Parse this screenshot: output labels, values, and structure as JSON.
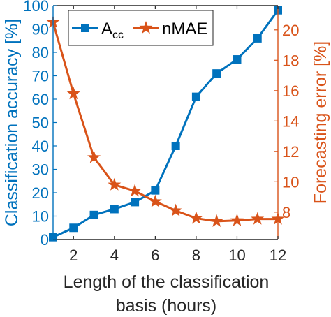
{
  "chart_data": {
    "type": "line",
    "x": [
      1,
      2,
      3,
      4,
      5,
      6,
      7,
      8,
      9,
      10,
      11,
      12
    ],
    "xlabel": [
      "Length of the classification",
      "basis (hours)"
    ],
    "xlim": [
      1,
      12
    ],
    "xticks": [
      2,
      4,
      6,
      8,
      10,
      12
    ],
    "grid": false,
    "legend_position": "top-left",
    "axes": {
      "left": {
        "label": "Classification accuracy [%]",
        "lim": [
          0,
          100
        ],
        "ticks": [
          0,
          10,
          20,
          30,
          40,
          50,
          60,
          70,
          80,
          90,
          100
        ],
        "color": "#0072BD"
      },
      "right": {
        "label": "Forecasting error [%]",
        "lim": [
          6.2,
          21.6
        ],
        "ticks": [
          8,
          10,
          12,
          14,
          16,
          18,
          20
        ],
        "color": "#D95319"
      }
    },
    "series": [
      {
        "legend_main": "A",
        "legend_sub": "cc",
        "axis": "left",
        "marker": "square",
        "color": "#0072BD",
        "values": [
          1,
          5,
          10.5,
          13,
          16,
          21,
          40,
          61,
          71,
          77,
          86,
          98
        ]
      },
      {
        "name": "nMAE",
        "axis": "right",
        "marker": "star",
        "color": "#D95319",
        "values": [
          20.5,
          15.8,
          11.6,
          9.8,
          9.4,
          8.7,
          8.1,
          7.6,
          7.4,
          7.45,
          7.55,
          7.55
        ]
      }
    ]
  }
}
